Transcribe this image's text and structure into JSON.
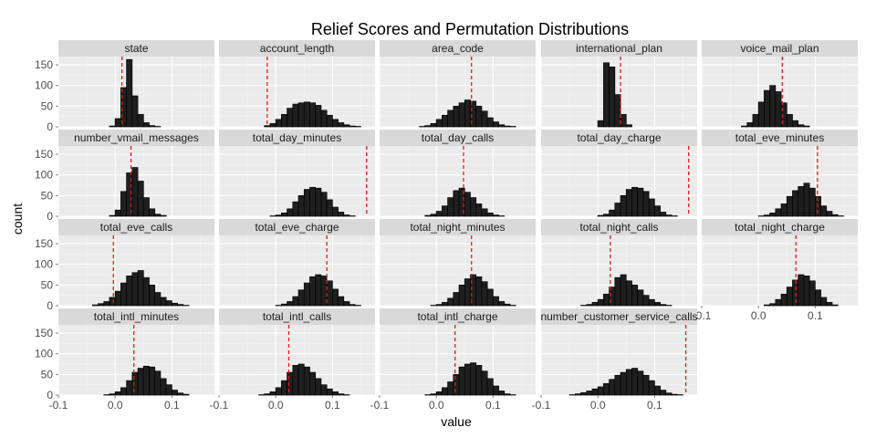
{
  "chart_data": {
    "type": "bar",
    "title": "Relief Scores and Permutation Distributions",
    "xlabel": "value",
    "ylabel": "count",
    "xlim": [
      -0.1,
      0.175
    ],
    "ylim": [
      0,
      170
    ],
    "x_ticks": [
      -0.1,
      0.0,
      0.1
    ],
    "x_tick_labels": [
      "-0.1",
      "0.0",
      "0.1"
    ],
    "y_ticks": [
      0,
      50,
      100,
      150
    ],
    "y_tick_labels": [
      "0",
      "50",
      "100",
      "150"
    ],
    "grid": true,
    "bin_start": -0.1,
    "bin_width": 0.01,
    "reference_line_color": "#e41a1c",
    "bar_fill": "#1f1f1f",
    "panels": [
      {
        "name": "state",
        "line": 0.012,
        "counts": [
          0,
          0,
          0,
          0,
          0,
          0,
          0,
          0,
          0,
          2,
          20,
          95,
          163,
          75,
          30,
          10,
          3,
          1,
          0,
          0,
          0,
          0,
          0,
          0,
          0,
          0,
          0
        ]
      },
      {
        "name": "account_length",
        "line": -0.015,
        "counts": [
          0,
          0,
          0,
          0,
          0,
          0,
          0,
          0,
          3,
          8,
          18,
          30,
          45,
          55,
          58,
          60,
          58,
          52,
          40,
          28,
          18,
          10,
          5,
          2,
          1,
          0,
          0
        ]
      },
      {
        "name": "area_code",
        "line": 0.062,
        "counts": [
          0,
          0,
          0,
          0,
          0,
          0,
          0,
          1,
          3,
          8,
          18,
          28,
          40,
          50,
          58,
          65,
          62,
          50,
          38,
          22,
          12,
          5,
          2,
          1,
          0,
          0,
          0
        ]
      },
      {
        "name": "international_plan",
        "line": 0.04,
        "counts": [
          0,
          0,
          0,
          0,
          0,
          0,
          0,
          0,
          0,
          0,
          15,
          155,
          145,
          78,
          30,
          5,
          0,
          0,
          0,
          0,
          0,
          0,
          0,
          0,
          0,
          0,
          0
        ]
      },
      {
        "name": "voice_mail_plan",
        "line": 0.042,
        "counts": [
          0,
          0,
          0,
          0,
          0,
          0,
          0,
          2,
          10,
          30,
          60,
          88,
          100,
          85,
          58,
          30,
          15,
          5,
          2,
          0,
          0,
          0,
          0,
          0,
          0,
          0,
          0
        ]
      },
      {
        "name": "number_vmail_messages",
        "line": 0.028,
        "counts": [
          0,
          0,
          0,
          0,
          0,
          0,
          0,
          0,
          0,
          2,
          15,
          60,
          105,
          118,
          85,
          45,
          18,
          5,
          2,
          0,
          0,
          0,
          0,
          0,
          0,
          0,
          0
        ]
      },
      {
        "name": "total_day_minutes",
        "line": 0.16,
        "counts": [
          0,
          0,
          0,
          0,
          0,
          0,
          0,
          0,
          0,
          1,
          3,
          8,
          18,
          35,
          50,
          65,
          70,
          68,
          58,
          40,
          22,
          10,
          3,
          1,
          0,
          0,
          0
        ]
      },
      {
        "name": "total_day_calls",
        "line": 0.048,
        "counts": [
          0,
          0,
          0,
          0,
          0,
          0,
          0,
          0,
          2,
          5,
          12,
          25,
          45,
          62,
          68,
          58,
          45,
          30,
          18,
          8,
          3,
          1,
          0,
          0,
          0,
          0,
          0
        ]
      },
      {
        "name": "total_day_charge",
        "line": 0.16,
        "counts": [
          0,
          0,
          0,
          0,
          0,
          0,
          0,
          0,
          0,
          0,
          2,
          5,
          15,
          32,
          50,
          65,
          70,
          68,
          60,
          42,
          25,
          10,
          3,
          1,
          0,
          0,
          0
        ]
      },
      {
        "name": "total_eve_minutes",
        "line": 0.104,
        "counts": [
          0,
          0,
          0,
          0,
          0,
          0,
          0,
          0,
          0,
          0,
          1,
          3,
          8,
          18,
          30,
          48,
          62,
          72,
          80,
          68,
          48,
          25,
          12,
          4,
          1,
          0,
          0
        ]
      },
      {
        "name": "total_eve_calls",
        "line": -0.003,
        "counts": [
          0,
          0,
          0,
          0,
          0,
          0,
          2,
          5,
          10,
          20,
          35,
          55,
          72,
          80,
          85,
          68,
          50,
          32,
          20,
          12,
          6,
          3,
          1,
          0,
          0,
          0,
          0
        ]
      },
      {
        "name": "total_eve_charge",
        "line": 0.09,
        "counts": [
          0,
          0,
          0,
          0,
          0,
          0,
          0,
          0,
          0,
          0,
          1,
          4,
          10,
          22,
          38,
          55,
          70,
          75,
          72,
          60,
          40,
          22,
          10,
          3,
          1,
          0,
          0
        ]
      },
      {
        "name": "total_night_minutes",
        "line": 0.062,
        "counts": [
          0,
          0,
          0,
          0,
          0,
          0,
          0,
          0,
          0,
          1,
          3,
          8,
          18,
          32,
          50,
          65,
          75,
          70,
          58,
          40,
          22,
          10,
          4,
          1,
          0,
          0,
          0
        ]
      },
      {
        "name": "total_night_calls",
        "line": 0.022,
        "counts": [
          0,
          0,
          0,
          0,
          0,
          0,
          0,
          1,
          3,
          8,
          15,
          28,
          45,
          68,
          75,
          60,
          50,
          38,
          25,
          15,
          8,
          3,
          1,
          0,
          0,
          0,
          0
        ]
      },
      {
        "name": "total_night_charge",
        "line": 0.066,
        "counts": [
          0,
          0,
          0,
          0,
          0,
          0,
          0,
          0,
          0,
          0,
          0,
          2,
          5,
          15,
          28,
          45,
          62,
          75,
          72,
          60,
          38,
          20,
          8,
          2,
          0,
          0,
          0
        ]
      },
      {
        "name": "total_intl_minutes",
        "line": 0.033,
        "counts": [
          0,
          0,
          0,
          0,
          0,
          0,
          0,
          0,
          1,
          3,
          8,
          18,
          35,
          55,
          65,
          70,
          68,
          58,
          40,
          25,
          12,
          5,
          2,
          0,
          0,
          0,
          0
        ]
      },
      {
        "name": "total_intl_calls",
        "line": 0.023,
        "counts": [
          0,
          0,
          0,
          0,
          0,
          0,
          0,
          1,
          3,
          8,
          18,
          35,
          55,
          72,
          75,
          68,
          55,
          40,
          25,
          15,
          8,
          3,
          1,
          0,
          0,
          0,
          0
        ]
      },
      {
        "name": "total_intl_charge",
        "line": 0.033,
        "counts": [
          0,
          0,
          0,
          0,
          0,
          0,
          0,
          0,
          1,
          3,
          8,
          18,
          32,
          50,
          68,
          75,
          78,
          72,
          58,
          40,
          22,
          10,
          3,
          1,
          0,
          0,
          0
        ]
      },
      {
        "name": "number_customer_service_calls",
        "line": 0.155,
        "counts": [
          0,
          0,
          0,
          0,
          0,
          1,
          3,
          6,
          10,
          15,
          20,
          28,
          38,
          48,
          55,
          62,
          65,
          58,
          48,
          35,
          22,
          12,
          5,
          2,
          1,
          0,
          0
        ]
      }
    ]
  }
}
